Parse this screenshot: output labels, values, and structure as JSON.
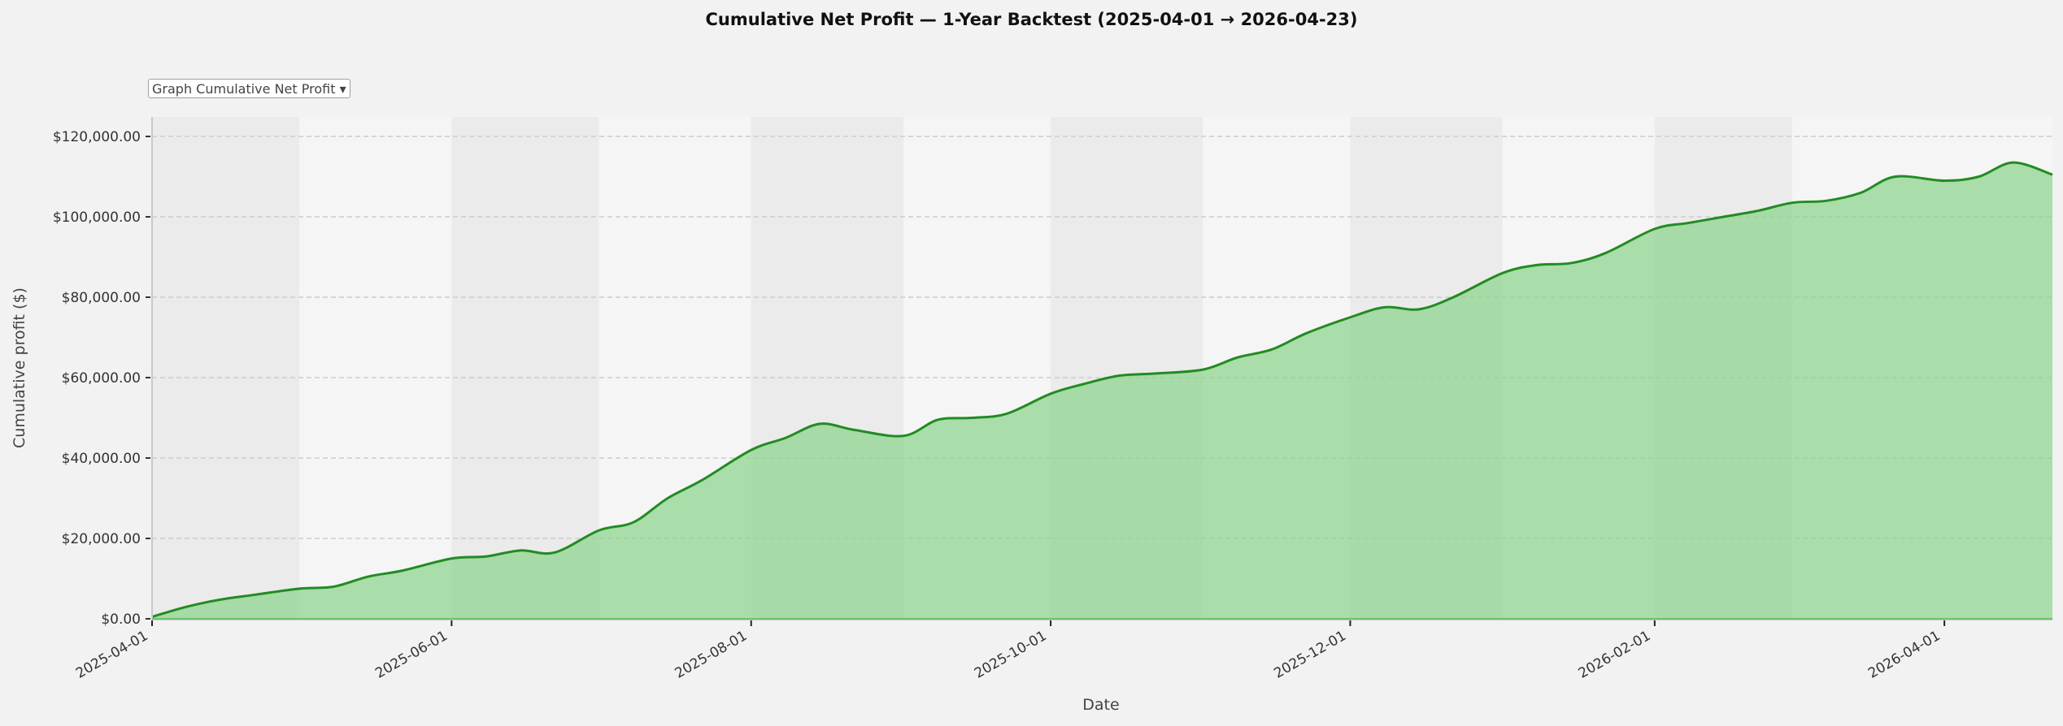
{
  "title": "Cumulative Net Profit  —  1-Year Backtest  (2025-04-01 → 2026-04-23)",
  "graph_selector": {
    "label": "Graph  Cumulative Net Profit",
    "arrow": "▾",
    "selected": "Cumulative Net Profit"
  },
  "colors": {
    "line": "#228b22",
    "fill": "#8fd48f",
    "band_dark": "#ebebeb",
    "band_light": "#f5f5f5",
    "background": "#f2f2f2",
    "grid": "#cccccc"
  },
  "chart_data": {
    "type": "area",
    "title": "Cumulative Net Profit  —  1-Year Backtest  (2025-04-01 → 2026-04-23)",
    "xlabel": "Date",
    "ylabel": "Cumulative profit ($)",
    "ylim": [
      0,
      125000
    ],
    "xlim": [
      "2025-04-01",
      "2026-04-23"
    ],
    "grid": true,
    "y_ticks": [
      "$0.00",
      "$20,000.00",
      "$40,000.00",
      "$60,000.00",
      "$80,000.00",
      "$100,000.00",
      "$120,000.00"
    ],
    "y_tick_values": [
      0,
      20000,
      40000,
      60000,
      80000,
      100000,
      120000
    ],
    "x_ticks": [
      "2025-04-01",
      "2025-06-01",
      "2025-08-01",
      "2025-10-01",
      "2025-12-01",
      "2026-02-01",
      "2026-04-01"
    ],
    "series": [
      {
        "name": "Cumulative Net Profit",
        "x": [
          "2025-04-01",
          "2025-04-08",
          "2025-04-15",
          "2025-04-22",
          "2025-05-01",
          "2025-05-08",
          "2025-05-15",
          "2025-05-22",
          "2025-06-01",
          "2025-06-08",
          "2025-06-15",
          "2025-06-22",
          "2025-07-01",
          "2025-07-08",
          "2025-07-15",
          "2025-07-22",
          "2025-08-01",
          "2025-08-08",
          "2025-08-15",
          "2025-08-22",
          "2025-09-01",
          "2025-09-08",
          "2025-09-15",
          "2025-09-22",
          "2025-10-01",
          "2025-10-08",
          "2025-10-15",
          "2025-10-22",
          "2025-11-01",
          "2025-11-08",
          "2025-11-15",
          "2025-11-22",
          "2025-12-01",
          "2025-12-08",
          "2025-12-15",
          "2025-12-22",
          "2026-01-01",
          "2026-01-08",
          "2026-01-15",
          "2026-01-22",
          "2026-02-01",
          "2026-02-08",
          "2026-02-15",
          "2026-02-22",
          "2026-03-01",
          "2026-03-08",
          "2026-03-15",
          "2026-03-22",
          "2026-04-01",
          "2026-04-08",
          "2026-04-15",
          "2026-04-23"
        ],
        "values": [
          500,
          3000,
          4800,
          6000,
          7500,
          8000,
          10500,
          12000,
          15000,
          15500,
          17000,
          16500,
          22000,
          24000,
          30000,
          34500,
          42000,
          45000,
          48500,
          47000,
          45500,
          49500,
          50000,
          51000,
          56000,
          58500,
          60500,
          61000,
          62000,
          65000,
          67000,
          71000,
          75000,
          77500,
          77000,
          80000,
          86000,
          88000,
          88500,
          91000,
          97000,
          98500,
          100000,
          101500,
          103500,
          104000,
          106000,
          110000,
          109000,
          110000,
          113500,
          110500
        ]
      }
    ],
    "shaded_bands": [
      "2025-04",
      "2025-06",
      "2025-08",
      "2025-10",
      "2025-12",
      "2026-02"
    ]
  }
}
